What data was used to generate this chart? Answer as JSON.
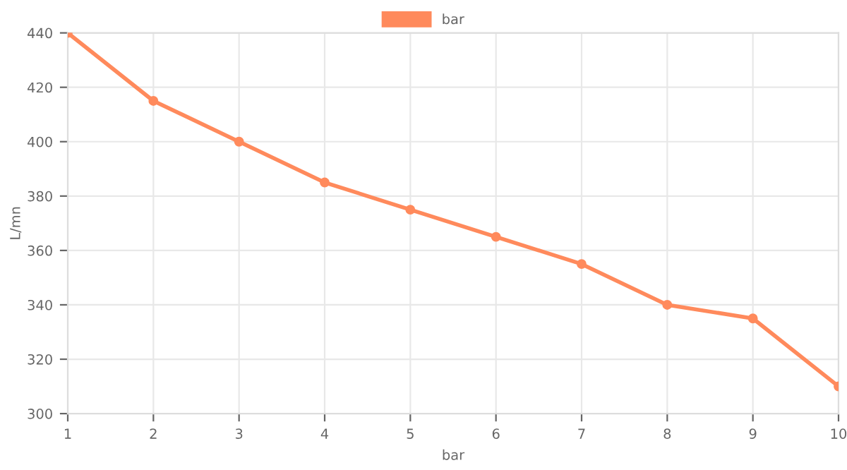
{
  "chart_data": {
    "type": "line",
    "xlabel": "bar",
    "ylabel": "L/mn",
    "x": [
      1,
      2,
      3,
      4,
      5,
      6,
      7,
      8,
      9,
      10
    ],
    "series": [
      {
        "name": "bar",
        "color": "#ff8a5c",
        "values": [
          440,
          415,
          400,
          385,
          375,
          365,
          355,
          340,
          335,
          310
        ]
      }
    ],
    "xlim": [
      1,
      10
    ],
    "xticks": [
      1,
      2,
      3,
      4,
      5,
      6,
      7,
      8,
      9,
      10
    ],
    "ylim": [
      300,
      440
    ],
    "yticks": [
      300,
      320,
      340,
      360,
      380,
      400,
      420,
      440
    ],
    "grid": true,
    "legend": "top",
    "marker": "circle",
    "line_style": "solid"
  }
}
